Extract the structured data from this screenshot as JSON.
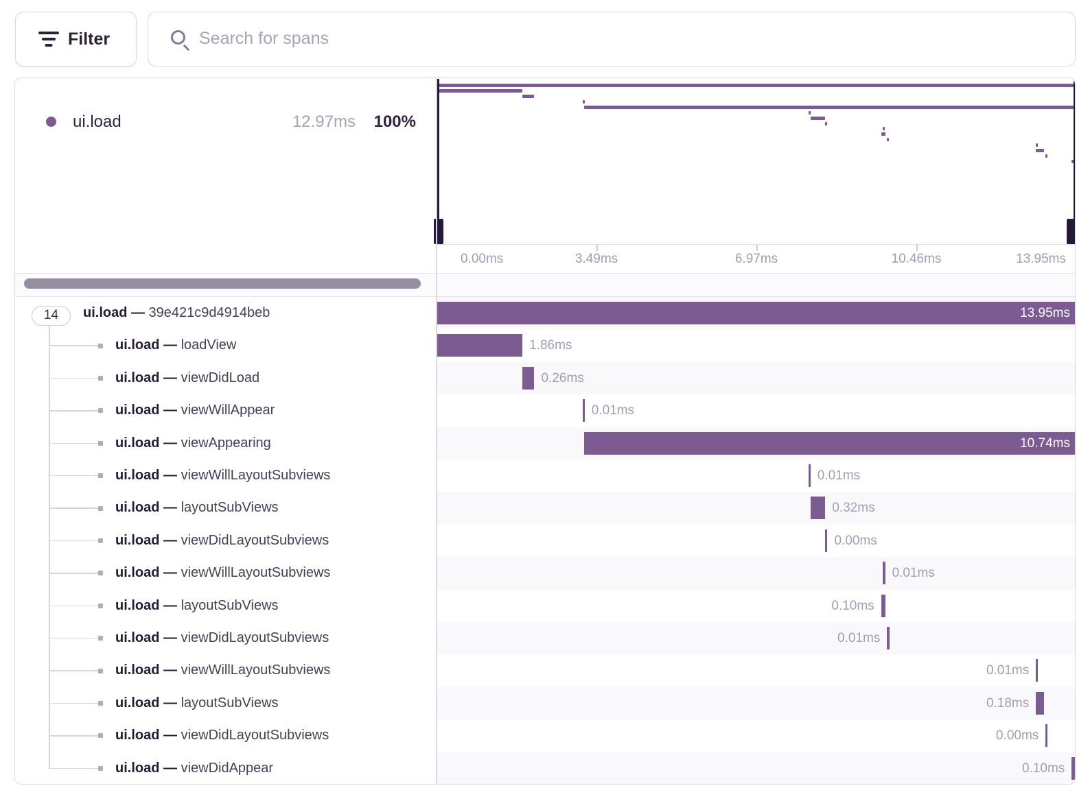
{
  "toolbar": {
    "filter_label": "Filter",
    "search_placeholder": "Search for spans"
  },
  "legend": {
    "op": "ui.load",
    "duration": "12.97ms",
    "percent": "100%"
  },
  "axis": {
    "ticks": [
      "0.00ms",
      "3.49ms",
      "6.97ms",
      "10.46ms",
      "13.95ms"
    ]
  },
  "trace": {
    "children_count": "14",
    "total_ms": 13.95
  },
  "chart_data": {
    "type": "gantt-waterfall",
    "title": "ui.load span waterfall",
    "x_unit": "ms",
    "x_range": [
      0,
      13.95
    ],
    "axis_ticks_ms": [
      0.0,
      3.49,
      6.97,
      10.46,
      13.95
    ]
  },
  "spans": [
    {
      "op": "ui.load",
      "desc": "39e421c9d4914beb",
      "duration_label": "13.95ms",
      "start_ms": 0,
      "duration_ms": 13.95,
      "label_side": "inside",
      "root": true
    },
    {
      "op": "ui.load",
      "desc": "loadView",
      "duration_label": "1.86ms",
      "start_ms": 0,
      "duration_ms": 1.86,
      "label_side": "right"
    },
    {
      "op": "ui.load",
      "desc": "viewDidLoad",
      "duration_label": "0.26ms",
      "start_ms": 1.86,
      "duration_ms": 0.26,
      "label_side": "right"
    },
    {
      "op": "ui.load",
      "desc": "viewWillAppear",
      "duration_label": "0.01ms",
      "start_ms": 3.17,
      "duration_ms": 0.01,
      "label_side": "right"
    },
    {
      "op": "ui.load",
      "desc": "viewAppearing",
      "duration_label": "10.74ms",
      "start_ms": 3.21,
      "duration_ms": 10.74,
      "label_side": "inside"
    },
    {
      "op": "ui.load",
      "desc": "viewWillLayoutSubviews",
      "duration_label": "0.01ms",
      "start_ms": 8.1,
      "duration_ms": 0.01,
      "label_side": "right"
    },
    {
      "op": "ui.load",
      "desc": "layoutSubViews",
      "duration_label": "0.32ms",
      "start_ms": 8.15,
      "duration_ms": 0.32,
      "label_side": "right"
    },
    {
      "op": "ui.load",
      "desc": "viewDidLayoutSubviews",
      "duration_label": "0.00ms",
      "start_ms": 8.47,
      "duration_ms": 0.004,
      "label_side": "right"
    },
    {
      "op": "ui.load",
      "desc": "viewWillLayoutSubviews",
      "duration_label": "0.01ms",
      "start_ms": 9.73,
      "duration_ms": 0.01,
      "label_side": "right"
    },
    {
      "op": "ui.load",
      "desc": "layoutSubViews",
      "duration_label": "0.10ms",
      "start_ms": 9.69,
      "duration_ms": 0.1,
      "label_side": "left"
    },
    {
      "op": "ui.load",
      "desc": "viewDidLayoutSubviews",
      "duration_label": "0.01ms",
      "start_ms": 9.82,
      "duration_ms": 0.01,
      "label_side": "left"
    },
    {
      "op": "ui.load",
      "desc": "viewWillLayoutSubviews",
      "duration_label": "0.01ms",
      "start_ms": 13.07,
      "duration_ms": 0.01,
      "label_side": "left"
    },
    {
      "op": "ui.load",
      "desc": "layoutSubViews",
      "duration_label": "0.18ms",
      "start_ms": 13.07,
      "duration_ms": 0.18,
      "label_side": "left"
    },
    {
      "op": "ui.load",
      "desc": "viewDidLayoutSubviews",
      "duration_label": "0.00ms",
      "start_ms": 13.28,
      "duration_ms": 0.004,
      "label_side": "left"
    },
    {
      "op": "ui.load",
      "desc": "viewDidAppear",
      "duration_label": "0.10ms",
      "start_ms": 13.85,
      "duration_ms": 0.1,
      "label_side": "left"
    }
  ]
}
